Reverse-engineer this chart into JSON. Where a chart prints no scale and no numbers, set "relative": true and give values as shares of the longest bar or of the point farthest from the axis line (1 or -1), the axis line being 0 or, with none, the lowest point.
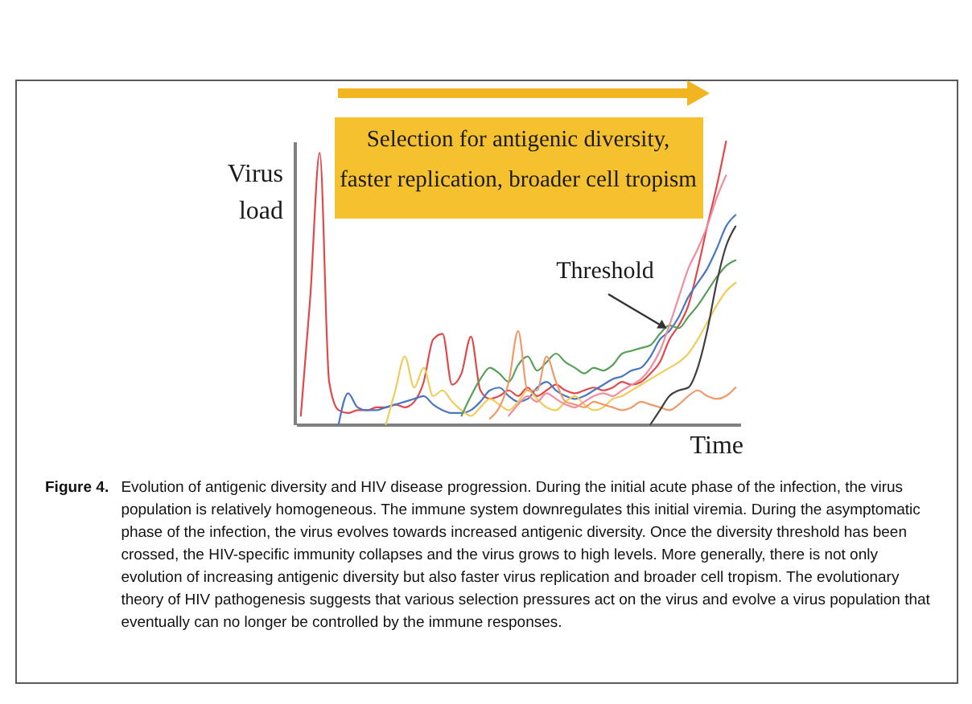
{
  "chart_data": {
    "type": "line",
    "relative": true,
    "xlabel": "Time",
    "ylabel": "Virus load",
    "categories": [
      null,
      null,
      null,
      null,
      null,
      null,
      null,
      null,
      null,
      null,
      null,
      null,
      null,
      null,
      null,
      null,
      null,
      null,
      null,
      null,
      null,
      null,
      null,
      null,
      null,
      null,
      null,
      null,
      null,
      null,
      null,
      null,
      null,
      null,
      null,
      null,
      null,
      null,
      null,
      null,
      null,
      null,
      null,
      null,
      null,
      null,
      null
    ],
    "series": [
      {
        "color": "#e0484a",
        "values": [
          0.03,
          0.45,
          0.96,
          0.15,
          0.05,
          0.04,
          0.05,
          0.05,
          0.06,
          0.06,
          0.07,
          0.06,
          0.08,
          0.15,
          0.3,
          0.32,
          0.14,
          0.18,
          0.31,
          0.12,
          0.09,
          0.1,
          0.12,
          0.1,
          0.13,
          0.1,
          0.12,
          0.14,
          0.12,
          0.11,
          0.12,
          0.13,
          0.12,
          0.13,
          0.15,
          0.14,
          0.15,
          0.18,
          0.22,
          0.3,
          0.35,
          0.42,
          0.55,
          0.7,
          0.84,
          1.0,
          null
        ]
      },
      {
        "color": "#4a78c0",
        "values": [
          null,
          null,
          null,
          null,
          0.0,
          0.11,
          0.06,
          0.05,
          0.05,
          0.06,
          0.07,
          0.08,
          0.09,
          0.1,
          0.07,
          0.05,
          0.04,
          0.04,
          0.05,
          0.08,
          0.12,
          0.13,
          0.1,
          0.08,
          0.09,
          0.13,
          0.15,
          0.12,
          0.1,
          0.09,
          0.1,
          0.12,
          0.14,
          0.16,
          0.17,
          0.19,
          0.2,
          0.24,
          0.3,
          0.33,
          0.38,
          0.45,
          0.5,
          0.55,
          0.62,
          0.7,
          0.74
        ]
      },
      {
        "color": "#f0cc5c",
        "values": [
          null,
          null,
          null,
          null,
          null,
          null,
          null,
          null,
          null,
          0.0,
          0.12,
          0.24,
          0.13,
          0.2,
          0.1,
          0.12,
          0.08,
          0.05,
          0.03,
          0.06,
          0.09,
          0.07,
          0.05,
          0.08,
          0.12,
          0.09,
          0.06,
          0.05,
          0.08,
          0.1,
          0.07,
          0.05,
          0.06,
          0.09,
          0.1,
          0.12,
          0.14,
          0.16,
          0.18,
          0.2,
          0.22,
          0.25,
          0.3,
          0.36,
          0.42,
          0.47,
          0.5
        ]
      },
      {
        "color": "#58a058",
        "values": [
          null,
          null,
          null,
          null,
          null,
          null,
          null,
          null,
          null,
          null,
          null,
          null,
          null,
          null,
          null,
          null,
          null,
          0.03,
          0.1,
          0.16,
          0.2,
          0.18,
          0.15,
          0.21,
          0.24,
          0.19,
          0.22,
          0.25,
          0.22,
          0.2,
          0.18,
          0.2,
          0.19,
          0.21,
          0.25,
          0.26,
          0.27,
          0.28,
          0.32,
          0.35,
          0.34,
          0.38,
          0.42,
          0.47,
          0.52,
          0.56,
          0.58
        ]
      },
      {
        "color": "#f09a6a",
        "values": [
          null,
          null,
          null,
          null,
          null,
          null,
          null,
          null,
          null,
          null,
          null,
          null,
          null,
          null,
          null,
          null,
          null,
          null,
          null,
          null,
          0.02,
          0.06,
          0.15,
          0.33,
          0.12,
          0.12,
          0.24,
          0.15,
          0.08,
          0.07,
          0.06,
          0.08,
          0.07,
          0.06,
          0.05,
          0.06,
          0.08,
          0.07,
          0.06,
          0.05,
          0.07,
          0.1,
          0.12,
          0.1,
          0.09,
          0.1,
          0.13
        ]
      },
      {
        "color": "#f28c9c",
        "values": [
          null,
          null,
          null,
          null,
          null,
          null,
          null,
          null,
          null,
          null,
          null,
          null,
          null,
          null,
          null,
          null,
          null,
          null,
          null,
          null,
          null,
          null,
          0.03,
          0.07,
          0.1,
          0.08,
          0.11,
          0.09,
          0.07,
          0.06,
          0.08,
          0.1,
          0.11,
          0.1,
          0.12,
          0.14,
          0.16,
          0.2,
          0.26,
          0.35,
          0.45,
          0.55,
          0.62,
          0.7,
          0.8,
          0.88,
          null
        ]
      },
      {
        "color": "#404040",
        "values": [
          null,
          null,
          null,
          null,
          null,
          null,
          null,
          null,
          null,
          null,
          null,
          null,
          null,
          null,
          null,
          null,
          null,
          null,
          null,
          null,
          null,
          null,
          null,
          null,
          null,
          null,
          null,
          null,
          null,
          null,
          null,
          null,
          null,
          null,
          null,
          null,
          null,
          0.0,
          0.05,
          0.1,
          0.12,
          0.13,
          0.2,
          0.33,
          0.5,
          0.63,
          0.7
        ]
      }
    ],
    "annotations": [
      "Selection for antigenic diversity, faster replication, broader cell tropism",
      "Threshold",
      "Figure 4.",
      "Evolution of antigenic diversity and HIV disease progression. During the initial acute phase of the infection, the virus population is relatively homogeneous. The immune system downregulates this initial viremia. During the asymptomatic phase of the infection, the virus evolves towards increased antigenic diversity. Once the diversity threshold has been crossed, the HIV-specific immunity collapses and the virus grows to high levels. More generally, there is not only evolution of increasing antigenic diversity but also faster virus replication and broader cell tropism. The evolutionary theory of HIV pathogenesis suggests that various selection pressures act on the virus and evolve a virus population that eventually can no longer be controlled by the immune responses."
    ]
  }
}
